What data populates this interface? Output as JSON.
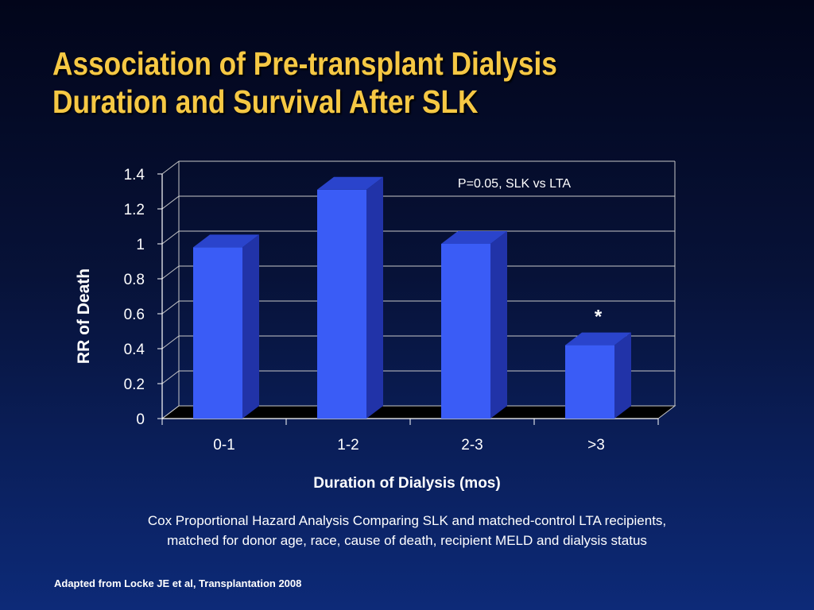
{
  "slide": {
    "title_line1": "Association of Pre-transplant Dialysis",
    "title_line2": "Duration and Survival After SLK",
    "caption_line1": "Cox Proportional Hazard Analysis Comparing SLK and matched-control LTA recipients,",
    "caption_line2": "matched for donor age, race, cause of death, recipient MELD and dialysis status",
    "source": "Adapted from Locke JE et al, Transplantation 2008"
  },
  "chart_data": {
    "type": "bar",
    "title": "",
    "xlabel": "Duration of Dialysis (mos)",
    "ylabel": "RR of Death",
    "categories": [
      "0-1",
      "1-2",
      "2-3",
      ">3"
    ],
    "values": [
      0.98,
      1.31,
      1.0,
      0.42
    ],
    "ylim": [
      0,
      1.4
    ],
    "yticks": [
      "0",
      "0.2",
      "0.4",
      "0.6",
      "0.8",
      "1",
      "1.2",
      "1.4"
    ],
    "ytick_values": [
      0,
      0.2,
      0.4,
      0.6,
      0.8,
      1,
      1.2,
      1.4
    ],
    "grid": true,
    "legend": "none",
    "annotation": "P=0.05, SLK vs LTA",
    "marker": "*",
    "marker_category": ">3",
    "colors": {
      "bar_front": "#3a5cf6",
      "bar_side": "#2133a8",
      "bar_top": "#2a44cc",
      "grid": "#c8c8c8",
      "title": "#f6c844"
    }
  }
}
